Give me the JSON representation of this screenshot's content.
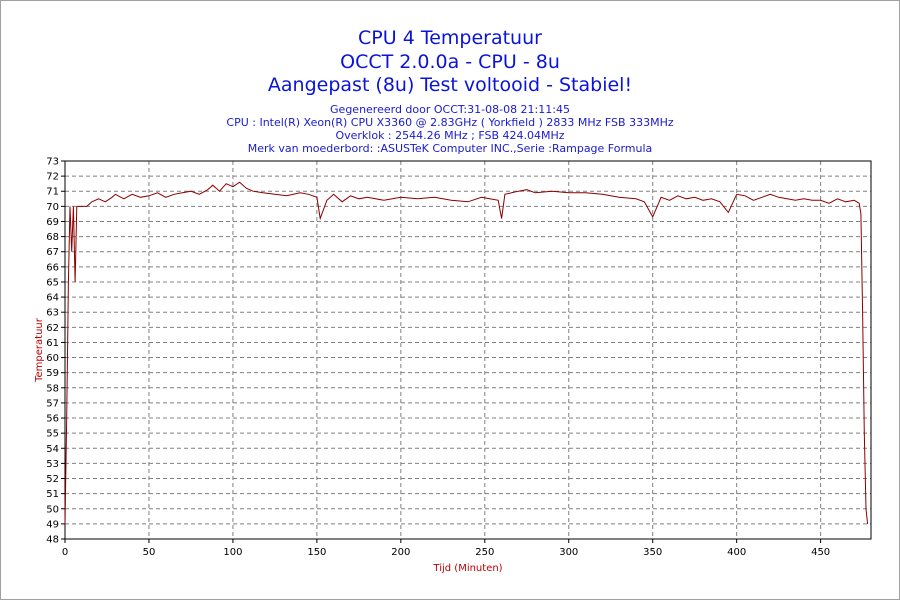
{
  "header": {
    "title": "CPU 4 Temperatuur",
    "subtitle": "OCCT 2.0.0a - CPU - 8u",
    "status": "Aangepast (8u) Test voltooid - Stabiel!",
    "info": [
      "Gegenereerd door OCCT:31-08-08 21:11:45",
      "CPU : Intel(R) Xeon(R) CPU X3360 @ 2.83GHz ( Yorkfield ) 2833 MHz FSB 333MHz",
      "Overklok : 2544.26 MHz ; FSB 424.04MHz",
      "Merk van moederbord: :ASUSTeK Computer INC.,Serie :Rampage Formula"
    ]
  },
  "colors": {
    "line": "#8b0000",
    "grid": "#808080",
    "title": "#0a14d8",
    "axis_label": "#c00000"
  },
  "chart_data": {
    "type": "line",
    "xlabel": "Tijd (Minuten)",
    "ylabel": "Temperatuur",
    "xlim": [
      0,
      480
    ],
    "ylim": [
      48,
      73
    ],
    "x_ticks": [
      0,
      50,
      100,
      150,
      200,
      250,
      300,
      350,
      400,
      450
    ],
    "y_ticks": [
      48,
      49,
      50,
      51,
      52,
      53,
      54,
      55,
      56,
      57,
      58,
      59,
      60,
      61,
      62,
      63,
      64,
      65,
      66,
      67,
      68,
      69,
      70,
      71,
      72,
      73
    ],
    "grid": true,
    "series": [
      {
        "x": [
          0,
          1,
          2,
          3,
          4,
          5,
          6,
          7,
          8,
          10,
          13,
          16,
          20,
          24,
          28,
          30,
          35,
          40,
          45,
          50,
          55,
          60,
          65,
          70,
          75,
          80,
          85,
          88,
          92,
          96,
          100,
          104,
          108,
          112,
          118,
          125,
          132,
          140,
          145,
          150,
          152,
          156,
          160,
          165,
          170,
          175,
          180,
          190,
          200,
          210,
          220,
          230,
          240,
          248,
          253,
          258,
          260,
          262,
          266,
          270,
          275,
          280,
          290,
          300,
          310,
          320,
          330,
          340,
          345,
          350,
          355,
          360,
          365,
          370,
          375,
          380,
          385,
          390,
          395,
          400,
          405,
          410,
          415,
          420,
          425,
          430,
          435,
          440,
          445,
          450,
          455,
          460,
          465,
          470,
          473,
          474,
          475,
          476,
          477,
          478
        ],
        "values": [
          49,
          56,
          65,
          70,
          67,
          70,
          65,
          70,
          70,
          70,
          70,
          70.3,
          70.5,
          70.3,
          70.6,
          70.8,
          70.5,
          70.8,
          70.6,
          70.7,
          70.9,
          70.6,
          70.8,
          70.9,
          71.0,
          70.8,
          71.1,
          71.4,
          71.0,
          71.5,
          71.3,
          71.6,
          71.2,
          71.0,
          70.9,
          70.8,
          70.7,
          70.9,
          70.8,
          70.6,
          69.2,
          70.4,
          70.8,
          70.3,
          70.7,
          70.5,
          70.6,
          70.4,
          70.6,
          70.5,
          70.6,
          70.4,
          70.3,
          70.6,
          70.5,
          70.4,
          69.2,
          70.8,
          70.9,
          71.0,
          71.1,
          70.9,
          71.0,
          70.9,
          70.9,
          70.8,
          70.6,
          70.5,
          70.3,
          69.3,
          70.6,
          70.4,
          70.7,
          70.5,
          70.6,
          70.4,
          70.5,
          70.3,
          69.6,
          70.8,
          70.7,
          70.4,
          70.6,
          70.8,
          70.6,
          70.5,
          70.4,
          70.5,
          70.4,
          70.4,
          70.2,
          70.5,
          70.3,
          70.4,
          70.2,
          69.5,
          63,
          55,
          50,
          49
        ]
      }
    ]
  }
}
